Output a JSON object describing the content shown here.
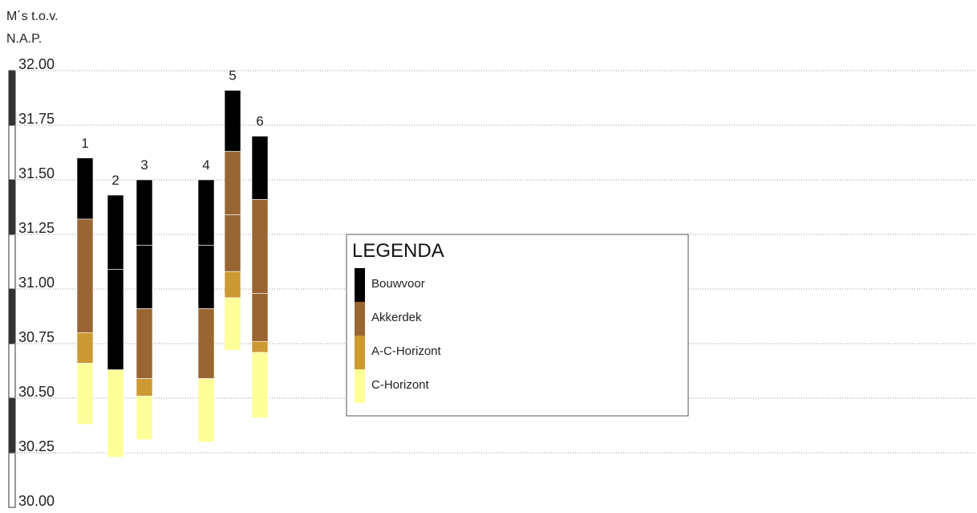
{
  "chart_data": {
    "type": "bar",
    "subtype": "stacked-soil-profile",
    "y_title_lines": [
      "M´s  t.o.v.",
      "N.A.P."
    ],
    "ylim": [
      30.0,
      32.0
    ],
    "yticks": [
      "32.00",
      "31.75",
      "31.50",
      "31.25",
      "31.00",
      "30.75",
      "30.50",
      "30.25",
      "30.00"
    ],
    "grid": true,
    "categories": [
      "1",
      "2",
      "3",
      "4",
      "5",
      "6"
    ],
    "layer_types": [
      {
        "key": "bouwvoor",
        "name": "Bouwvoor",
        "color": "#000000"
      },
      {
        "key": "akkerdek",
        "name": "Akkerdek",
        "color": "#996633"
      },
      {
        "key": "ac",
        "name": "A-C-Horizont",
        "color": "#CC9933"
      },
      {
        "key": "c",
        "name": "C-Horizont",
        "color": "#FFFF99"
      }
    ],
    "borings": [
      {
        "label": "1",
        "layers": [
          {
            "type": "bouwvoor",
            "top": 31.6,
            "bottom": 31.32
          },
          {
            "type": "akkerdek",
            "top": 31.32,
            "bottom": 30.8
          },
          {
            "type": "ac",
            "top": 30.8,
            "bottom": 30.66
          },
          {
            "type": "c",
            "top": 30.66,
            "bottom": 30.38
          }
        ]
      },
      {
        "label": "2",
        "layers": [
          {
            "type": "bouwvoor",
            "top": 31.43,
            "bottom": 31.09
          },
          {
            "type": "bouwvoor",
            "top": 31.09,
            "bottom": 30.63
          },
          {
            "type": "c",
            "top": 30.63,
            "bottom": 30.23
          }
        ]
      },
      {
        "label": "3",
        "layers": [
          {
            "type": "bouwvoor",
            "top": 31.5,
            "bottom": 31.2
          },
          {
            "type": "bouwvoor",
            "top": 31.2,
            "bottom": 30.91
          },
          {
            "type": "akkerdek",
            "top": 30.91,
            "bottom": 30.59
          },
          {
            "type": "ac",
            "top": 30.59,
            "bottom": 30.51
          },
          {
            "type": "c",
            "top": 30.51,
            "bottom": 30.31
          }
        ]
      },
      {
        "label": "4",
        "layers": [
          {
            "type": "bouwvoor",
            "top": 31.5,
            "bottom": 31.2
          },
          {
            "type": "bouwvoor",
            "top": 31.2,
            "bottom": 30.91
          },
          {
            "type": "akkerdek",
            "top": 30.91,
            "bottom": 30.59
          },
          {
            "type": "c",
            "top": 30.59,
            "bottom": 30.3
          }
        ]
      },
      {
        "label": "5",
        "layers": [
          {
            "type": "bouwvoor",
            "top": 31.91,
            "bottom": 31.63
          },
          {
            "type": "akkerdek",
            "top": 31.63,
            "bottom": 31.34
          },
          {
            "type": "akkerdek",
            "top": 31.34,
            "bottom": 31.08
          },
          {
            "type": "ac",
            "top": 31.08,
            "bottom": 30.96
          },
          {
            "type": "c",
            "top": 30.96,
            "bottom": 30.72
          }
        ]
      },
      {
        "label": "6",
        "layers": [
          {
            "type": "bouwvoor",
            "top": 31.7,
            "bottom": 31.41
          },
          {
            "type": "akkerdek",
            "top": 31.41,
            "bottom": 30.98
          },
          {
            "type": "akkerdek",
            "top": 30.98,
            "bottom": 30.76
          },
          {
            "type": "ac",
            "top": 30.76,
            "bottom": 30.71
          },
          {
            "type": "c",
            "top": 30.71,
            "bottom": 30.41
          }
        ]
      }
    ],
    "legend": {
      "title": "LEGENDA",
      "position": "center-right"
    }
  }
}
